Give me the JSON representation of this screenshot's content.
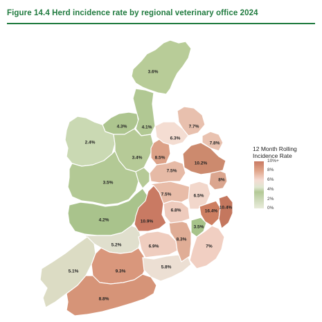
{
  "title": "Figure 14.4  Herd incidence rate by regional veterinary office 2024",
  "legend": {
    "title_line1": "12 Month Rolling",
    "title_line2": "Incidence Rate",
    "ticks": [
      "10%+",
      "8%",
      "6%",
      "4%",
      "2%",
      "0%"
    ]
  },
  "regions": [
    {
      "label": "3.6%",
      "value": 3.6,
      "color": "#b8cc98"
    },
    {
      "label": "4.3%",
      "value": 4.3,
      "color": "#adc58f"
    },
    {
      "label": "4.1%",
      "value": 4.1,
      "color": "#b1c893"
    },
    {
      "label": "2.4%",
      "value": 2.4,
      "color": "#cad9b3"
    },
    {
      "label": "3.4%",
      "value": 3.4,
      "color": "#b6ca97"
    },
    {
      "label": "3.5%",
      "value": 3.5,
      "color": "#b3c995"
    },
    {
      "label": "4.2%",
      "value": 4.2,
      "color": "#a9c38c"
    },
    {
      "label": "5.2%",
      "value": 5.2,
      "color": "#e0dfcd"
    },
    {
      "label": "5.1%",
      "value": 5.1,
      "color": "#dcdcc4"
    },
    {
      "label": "9.3%",
      "value": 9.3,
      "color": "#d9977c"
    },
    {
      "label": "8.8%",
      "value": 8.8,
      "color": "#d69478"
    },
    {
      "label": "5.8%",
      "value": 5.8,
      "color": "#ecdfd3"
    },
    {
      "label": "6.9%",
      "value": 6.9,
      "color": "#efcdbf"
    },
    {
      "label": "8.3%",
      "value": 8.3,
      "color": "#e0ad96"
    },
    {
      "label": "3.5%",
      "value": 3.5,
      "color": "#a7c38a"
    },
    {
      "label": "7%",
      "value": 7.0,
      "color": "#f1cfc2"
    },
    {
      "label": "10.9%",
      "value": 10.9,
      "color": "#c97a63"
    },
    {
      "label": "6.8%",
      "value": 6.8,
      "color": "#eecbbd"
    },
    {
      "label": "7.5%",
      "value": 7.5,
      "color": "#e8bca8"
    },
    {
      "label": "6.5%",
      "value": 6.5,
      "color": "#f2d7cb"
    },
    {
      "label": "16.4%",
      "value": 16.4,
      "color": "#cd7f62"
    },
    {
      "label": "10.4%",
      "value": 10.4,
      "color": "#c4775e"
    },
    {
      "label": "8%",
      "value": 8.0,
      "color": "#dba68f"
    },
    {
      "label": "8.5%",
      "value": 8.5,
      "color": "#dca187"
    },
    {
      "label": "7.5%",
      "value": 7.5,
      "color": "#e6baa6"
    },
    {
      "label": "10.2%",
      "value": 10.2,
      "color": "#cc8a6e"
    },
    {
      "label": "6.3%",
      "value": 6.3,
      "color": "#f4ddd2"
    },
    {
      "label": "7.7%",
      "value": 7.7,
      "color": "#e8c0ae"
    },
    {
      "label": "7.8%",
      "value": 7.8,
      "color": "#e9c2b0"
    }
  ]
}
